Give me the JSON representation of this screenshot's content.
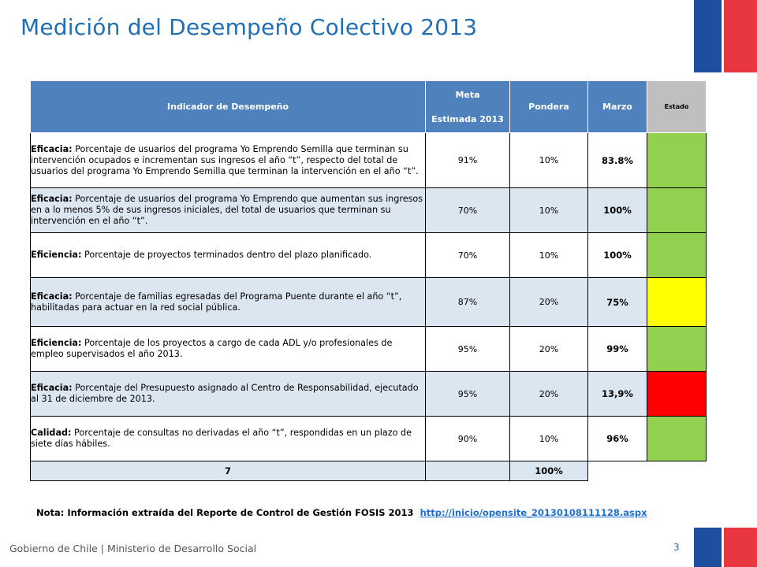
{
  "title": "Medición del Desempeño Colectivo 2013",
  "table": {
    "headers": {
      "indicador": "Indicador de Desempeño",
      "meta_line1": "Meta",
      "meta_line2": "Estimada 2013",
      "pondera": "Pondera",
      "marzo": "Marzo",
      "estado": "Estado"
    },
    "rows": [
      {
        "label": "Eficacia:",
        "text": " Porcentaje de usuarios del programa Yo Emprendo Semilla  que terminan su intervención ocupados e incrementan sus ingresos el año “t”, respecto del total de usuarios del programa Yo Emprendo Semilla que terminan la intervención en el año “t”.",
        "meta": "91%",
        "pondera": "10%",
        "marzo": "83.8%",
        "estado_color": "#92D050"
      },
      {
        "label": "Eficacia:",
        "text": " Porcentaje de usuarios del programa Yo Emprendo que aumentan sus ingresos en a lo menos 5% de sus ingresos iniciales, del total de usuarios que terminan su intervención en el año “t”.",
        "meta": "70%",
        "pondera": "10%",
        "marzo": "100%",
        "estado_color": "#92D050"
      },
      {
        "label": "Eficiencia:",
        "text": " Porcentaje de proyectos terminados dentro del plazo planificado.",
        "meta": "70%",
        "pondera": "10%",
        "marzo": "100%",
        "estado_color": "#92D050"
      },
      {
        "label": "Eficacia:",
        "text": " Porcentaje de familias egresadas del  Programa Puente durante el año “t”, habilitadas  para actuar en la red social pública.",
        "meta": "87%",
        "pondera": "20%",
        "marzo": "75%",
        "estado_color": "#FFFF00"
      },
      {
        "label": "Eficiencia:",
        "text": " Porcentaje de los proyectos a cargo de cada ADL y/o profesionales de empleo supervisados el año 2013.",
        "meta": "95%",
        "pondera": "20%",
        "marzo": "99%",
        "estado_color": "#92D050"
      },
      {
        "label": "Eficacia:",
        "text": " Porcentaje del Presupuesto asignado al  Centro de Responsabilidad, ejecutado al 31 de diciembre de 2013.",
        "meta": "95%",
        "pondera": "20%",
        "marzo": "13,9%",
        "estado_color": "#FF0000"
      },
      {
        "label": "Calidad:",
        "text": " Porcentaje de consultas no derivadas el año “t”, respondidas en un plazo de siete días hábiles.",
        "meta": "90%",
        "pondera": "10%",
        "marzo": "96%",
        "estado_color": "#92D050"
      }
    ],
    "total": {
      "count": "7",
      "pondera": "100%"
    }
  },
  "note": {
    "text": "Nota: Información extraída del Reporte de Control de Gestión FOSIS 2013",
    "link": "http://inicio/opensite_20130108111128.aspx"
  },
  "footer": "Gobierno de Chile | Ministerio de Desarrollo Social",
  "page_number": "3",
  "colors": {
    "header_blue": "#4F81BD",
    "row_alt": "#DCE6F1",
    "flag_blue": "#1F4E9E",
    "flag_red": "#E8373F",
    "title_blue": "#1F6FB5"
  }
}
